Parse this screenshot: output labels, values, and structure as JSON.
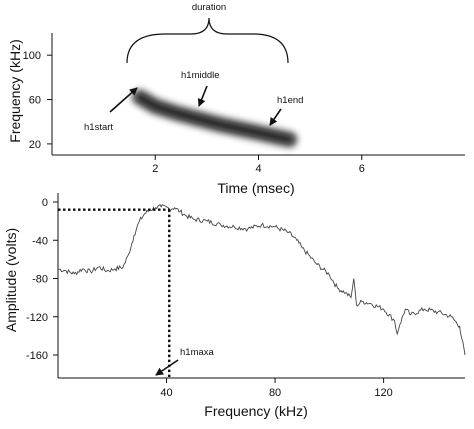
{
  "chart_data": [
    {
      "type": "spectrogram",
      "xlabel": "Time (msec)",
      "ylabel": "Frequency (kHz)",
      "xlim": [
        0,
        8
      ],
      "ylim": [
        10,
        120
      ],
      "x_ticks": [
        2,
        4,
        6
      ],
      "y_ticks": [
        20,
        60,
        100
      ],
      "grid": false,
      "call_trace": {
        "x": [
          1.7,
          2.0,
          2.4,
          2.8,
          3.2,
          3.6,
          4.0,
          4.4,
          4.6
        ],
        "y": [
          62,
          54,
          48,
          43,
          38,
          34,
          30,
          26,
          24
        ]
      },
      "annotations": [
        {
          "text": "duration",
          "kind": "brace",
          "x_range": [
            1.5,
            4.8
          ],
          "y": 93
        },
        {
          "text": "h1start",
          "arrow_to": [
            1.7,
            64
          ]
        },
        {
          "text": "h1middle",
          "arrow_to": [
            3.0,
            42
          ]
        },
        {
          "text": "h1end",
          "arrow_to": [
            4.4,
            24
          ]
        }
      ]
    },
    {
      "type": "line",
      "xlabel": "Frequency (kHz)",
      "ylabel": "Amplitude (volts)",
      "xlim": [
        0,
        150
      ],
      "ylim": [
        -180,
        5
      ],
      "x_ticks": [
        40,
        80,
        120
      ],
      "y_ticks": [
        0,
        -40,
        -80,
        -120,
        -160
      ],
      "grid": false,
      "series": [
        {
          "x": [
            0,
            3,
            6,
            9,
            12,
            15,
            18,
            21,
            24,
            26,
            28,
            30,
            32,
            34,
            36,
            38,
            40,
            41,
            43,
            45,
            47,
            50,
            55,
            60,
            65,
            70,
            75,
            80,
            85,
            88,
            90,
            95,
            100,
            103,
            106,
            108,
            109,
            110,
            112,
            115,
            120,
            124,
            125,
            126,
            128,
            130,
            135,
            140,
            145,
            148,
            150
          ],
          "y": [
            -70,
            -72,
            -75,
            -70,
            -73,
            -68,
            -72,
            -70,
            -68,
            -55,
            -35,
            -20,
            -12,
            -8,
            -6,
            -5,
            -5,
            -7,
            -6,
            -10,
            -14,
            -18,
            -20,
            -24,
            -26,
            -28,
            -24,
            -26,
            -32,
            -40,
            -48,
            -64,
            -76,
            -90,
            -95,
            -100,
            -80,
            -108,
            -104,
            -106,
            -112,
            -124,
            -138,
            -128,
            -112,
            -118,
            -112,
            -115,
            -120,
            -130,
            -160
          ]
        }
      ],
      "guides": [
        {
          "kind": "dotted-horizontal",
          "y": -8,
          "x_range": [
            0,
            41
          ]
        },
        {
          "kind": "dotted-vertical",
          "x": 41,
          "y_range": [
            -8,
            -180
          ]
        }
      ],
      "annotations": [
        {
          "text": "h1maxa",
          "arrow_to": [
            41,
            -176
          ]
        }
      ]
    }
  ]
}
